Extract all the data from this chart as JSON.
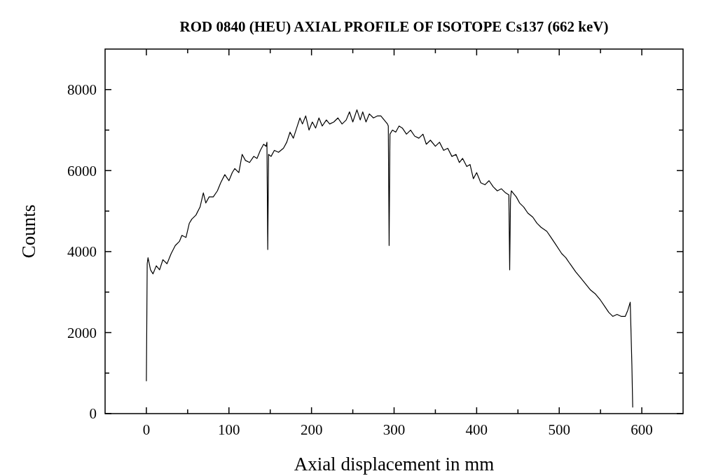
{
  "chart_data": {
    "type": "line",
    "title": "ROD 0840 (HEU)  AXIAL PROFILE OF ISOTOPE Cs137 (662 keV)",
    "xlabel": "Axial displacement in mm",
    "ylabel": "Counts",
    "series": [
      {
        "color": "#000000",
        "x": [
          0,
          1,
          2,
          5,
          8,
          12,
          16,
          20,
          25,
          30,
          35,
          40,
          43,
          48,
          52,
          55,
          60,
          65,
          69,
          72,
          76,
          81,
          86,
          90,
          95,
          100,
          104,
          107,
          112,
          116,
          120,
          125,
          130,
          134,
          138,
          142,
          145,
          146,
          147,
          148,
          151,
          155,
          160,
          166,
          170,
          174,
          178,
          182,
          186,
          189,
          193,
          197,
          201,
          205,
          209,
          213,
          218,
          222,
          227,
          232,
          237,
          242,
          246,
          250,
          255,
          259,
          262,
          266,
          270,
          275,
          280,
          284,
          288,
          292,
          293,
          294,
          295,
          298,
          302,
          306,
          310,
          315,
          320,
          325,
          330,
          335,
          339,
          344,
          350,
          355,
          360,
          365,
          370,
          375,
          379,
          383,
          388,
          392,
          396,
          400,
          405,
          410,
          415,
          420,
          425,
          430,
          435,
          439,
          440,
          441,
          442,
          444,
          448,
          452,
          457,
          462,
          468,
          473,
          478,
          485,
          490,
          495,
          503,
          508,
          513,
          520,
          526,
          532,
          538,
          544,
          550,
          555,
          560,
          565,
          570,
          575,
          580,
          583,
          586,
          588,
          589
        ],
        "values": [
          800,
          3700,
          3850,
          3550,
          3450,
          3650,
          3550,
          3800,
          3700,
          3950,
          4150,
          4250,
          4400,
          4350,
          4700,
          4800,
          4900,
          5100,
          5450,
          5200,
          5350,
          5350,
          5500,
          5700,
          5900,
          5750,
          5950,
          6050,
          5950,
          6400,
          6250,
          6200,
          6350,
          6300,
          6500,
          6650,
          6600,
          6700,
          4050,
          6400,
          6350,
          6500,
          6450,
          6550,
          6700,
          6950,
          6800,
          7050,
          7300,
          7150,
          7350,
          7000,
          7200,
          7050,
          7300,
          7100,
          7250,
          7150,
          7200,
          7300,
          7150,
          7250,
          7450,
          7200,
          7500,
          7250,
          7450,
          7200,
          7400,
          7300,
          7350,
          7350,
          7250,
          7150,
          7100,
          4150,
          6900,
          7000,
          6950,
          7100,
          7050,
          6900,
          7000,
          6850,
          6800,
          6900,
          6650,
          6750,
          6600,
          6700,
          6500,
          6550,
          6350,
          6400,
          6200,
          6300,
          6100,
          6150,
          5800,
          5950,
          5700,
          5650,
          5750,
          5600,
          5500,
          5550,
          5450,
          5400,
          3550,
          5300,
          5500,
          5450,
          5350,
          5200,
          5100,
          4950,
          4850,
          4700,
          4600,
          4500,
          4350,
          4200,
          3950,
          3850,
          3700,
          3500,
          3350,
          3200,
          3050,
          2950,
          2800,
          2650,
          2500,
          2400,
          2450,
          2400,
          2400,
          2550,
          2750,
          1200,
          150
        ]
      }
    ],
    "xlim": [
      -50,
      650
    ],
    "ylim": [
      0,
      9000
    ],
    "xticks": [
      0,
      {
        "value": 50,
        "label": null
      },
      100,
      {
        "value": 150,
        "label": null
      },
      200,
      {
        "value": 250,
        "label": null
      },
      300,
      {
        "value": 350,
        "label": null
      },
      400,
      {
        "value": 450,
        "label": null
      },
      500,
      {
        "value": 550,
        "label": null
      },
      600
    ],
    "yticks": [
      0,
      {
        "value": 1000,
        "label": null
      },
      2000,
      {
        "value": 3000,
        "label": null
      },
      4000,
      {
        "value": 5000,
        "label": null
      },
      6000,
      {
        "value": 7000,
        "label": null
      },
      8000
    ],
    "grid": false,
    "marker": "none",
    "line_style": "solid"
  }
}
